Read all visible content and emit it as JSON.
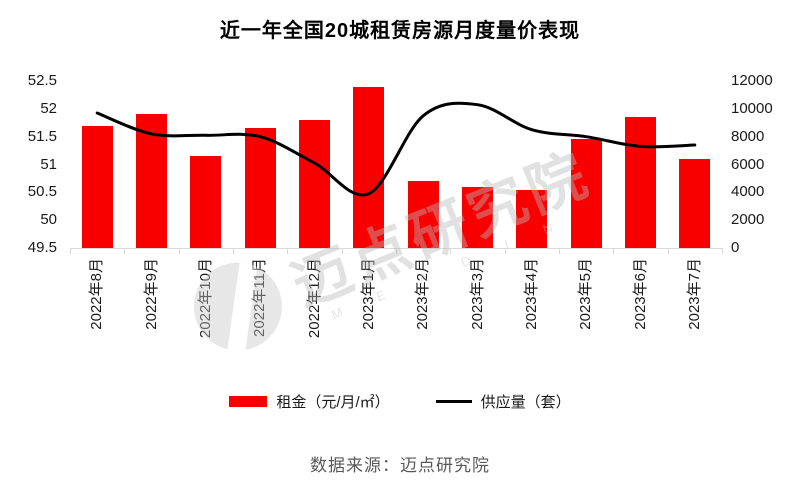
{
  "title": "近一年全国20城租赁房源月度量价表现",
  "footer": "数据来源：迈点研究院",
  "watermark": {
    "text": "迈点研究院",
    "letters": "M E A D I N"
  },
  "colors": {
    "bar_red": "#f90000",
    "line_black": "#000000",
    "axis_gray": "#d9d9d9",
    "label_dark": "#1a1a1a",
    "footer_gray": "#595959",
    "watermark_gray": "#c2c2c2"
  },
  "chart_data": {
    "type": "combo",
    "title": "近一年全国20城租赁房源月度量价表现",
    "categories": [
      "2022年8月",
      "2022年9月",
      "2022年10月",
      "2022年11月",
      "2022年12月",
      "2023年1月",
      "2023年2月",
      "2023年3月",
      "2023年4月",
      "2023年5月",
      "2023年6月",
      "2023年7月"
    ],
    "series": [
      {
        "name": "租金（元/月/㎡）",
        "type": "bar",
        "y_axis": "left",
        "color": "#f90000",
        "values": [
          51.7,
          51.9,
          51.15,
          51.65,
          51.8,
          52.4,
          50.7,
          50.6,
          50.55,
          51.45,
          51.85,
          51.1
        ]
      },
      {
        "name": "供应量（套）",
        "type": "line",
        "y_axis": "right",
        "color": "#000000",
        "values": [
          9700,
          8200,
          8100,
          8000,
          6100,
          3900,
          9500,
          10300,
          8500,
          8000,
          7300,
          7400
        ]
      }
    ],
    "left_axis": {
      "min": 49.5,
      "max": 52.5,
      "step": 0.5,
      "ticks": [
        "49.5",
        "50",
        "50.5",
        "51",
        "51.5",
        "52",
        "52.5"
      ]
    },
    "right_axis": {
      "min": 0,
      "max": 12000,
      "step": 2000,
      "ticks": [
        "0",
        "2000",
        "4000",
        "6000",
        "8000",
        "10000",
        "12000"
      ]
    },
    "grid": false,
    "legend_position": "bottom",
    "xlabel": "",
    "ylabel_left": "租金（元/月/㎡）",
    "ylabel_right": "供应量（套）"
  }
}
